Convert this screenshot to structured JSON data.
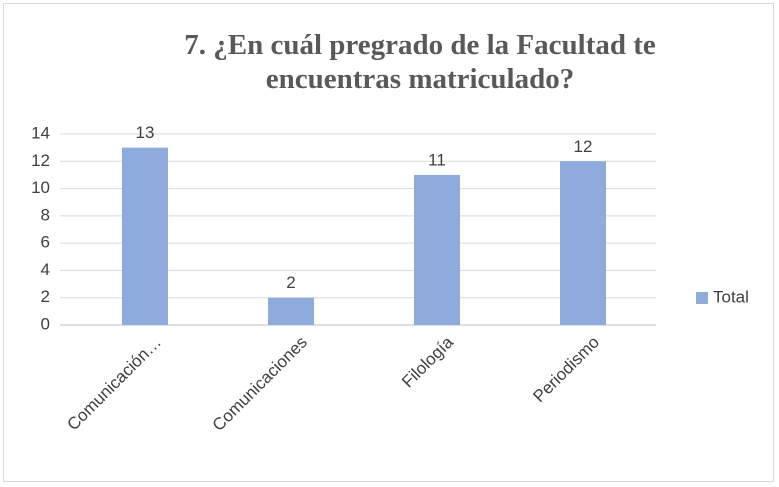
{
  "chart_data": {
    "type": "bar",
    "title": "7. ¿En cuál pregrado de la Facultad te encuentras matriculado?",
    "categories": [
      "Comunicación…",
      "Comunicaciones",
      "Filología",
      "Periodismo"
    ],
    "series": [
      {
        "name": "Total",
        "color": "#8faadc",
        "values": [
          13,
          2,
          11,
          12
        ]
      }
    ],
    "ylim": [
      0,
      14
    ],
    "yticks": [
      0,
      2,
      4,
      6,
      8,
      10,
      12,
      14
    ],
    "grid": true,
    "legend": "right"
  }
}
